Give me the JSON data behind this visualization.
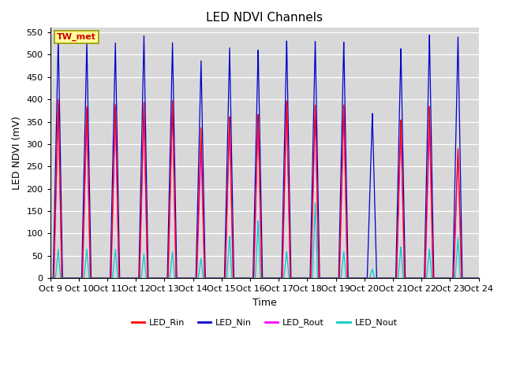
{
  "title": "LED NDVI Channels",
  "xlabel": "Time",
  "ylabel": "LED NDVI (mV)",
  "ylim": [
    0,
    560
  ],
  "yticks": [
    0,
    50,
    100,
    150,
    200,
    250,
    300,
    350,
    400,
    450,
    500,
    550
  ],
  "annotation_text": "TW_met",
  "annotation_color": "#cc0000",
  "annotation_bg": "#ffff99",
  "annotation_border": "#999900",
  "colors": {
    "LED_Rin": "#ff0000",
    "LED_Nin": "#0000cc",
    "LED_Rout": "#ff00ff",
    "LED_Nout": "#00cccc"
  },
  "background_color": "#d8d8d8",
  "xtick_labels": [
    "Oct 9",
    "Oct 10",
    "Oct 11",
    "Oct 12",
    "Oct 13",
    "Oct 14",
    "Oct 15",
    "Oct 16",
    "Oct 17",
    "Oct 18",
    "Oct 19",
    "Oct 20",
    "Oct 21",
    "Oct 22",
    "Oct 23",
    "Oct 24"
  ],
  "n_cycles": 15,
  "figsize": [
    6.4,
    4.8
  ],
  "dpi": 100,
  "peaks_Nin": [
    540,
    530,
    528,
    545,
    530,
    490,
    520,
    515,
    535,
    533,
    531,
    370,
    515,
    545,
    540
  ],
  "peaks_Rin": [
    400,
    385,
    390,
    395,
    400,
    340,
    365,
    370,
    400,
    390,
    390,
    0,
    355,
    385,
    290
  ],
  "peaks_Rout": [
    390,
    380,
    385,
    385,
    395,
    300,
    360,
    365,
    395,
    380,
    385,
    0,
    350,
    355,
    285
  ],
  "peaks_Nout": [
    65,
    65,
    65,
    55,
    60,
    45,
    95,
    130,
    60,
    170,
    60,
    20,
    70,
    65,
    90
  ]
}
